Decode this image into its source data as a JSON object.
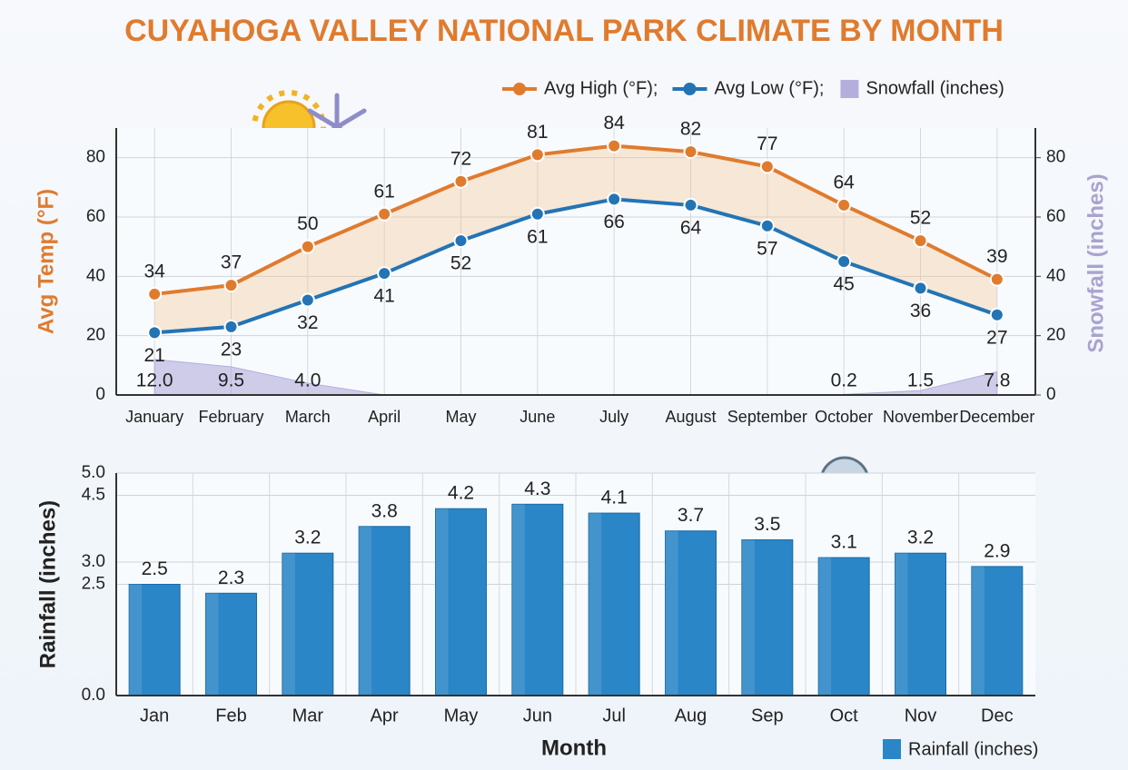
{
  "chart_data": [
    {
      "type": "line",
      "title": "CUYAHOGA VALLEY NATIONAL PARK CLIMATE BY MONTH",
      "categories": [
        "January",
        "February",
        "March",
        "April",
        "May",
        "June",
        "July",
        "August",
        "September",
        "October",
        "November",
        "December"
      ],
      "series": [
        {
          "name": "Avg High (°F);",
          "color": "#e07b2e",
          "axis": "y",
          "values": [
            34,
            37,
            50,
            61,
            72,
            81,
            84,
            82,
            77,
            64,
            52,
            39
          ]
        },
        {
          "name": "Avg Low (°F);",
          "color": "#2374b5",
          "axis": "y",
          "values": [
            21,
            23,
            32,
            41,
            52,
            61,
            66,
            64,
            57,
            45,
            36,
            27
          ]
        },
        {
          "name": "Snowfall (inches)",
          "type": "area",
          "color": "#b3aedb",
          "axis": "y2",
          "values": [
            12.0,
            9.5,
            4.0,
            0,
            0,
            0,
            0,
            0,
            0,
            0.2,
            1.5,
            7.8
          ],
          "value_labels": [
            "12.0",
            "9.5",
            "4.0",
            null,
            null,
            null,
            null,
            null,
            null,
            "0.2",
            "1.5",
            "7.8"
          ]
        }
      ],
      "ylabel": "Avg Temp (°F)",
      "ylabel_color": "#e07b2e",
      "y2label": "Snowfall (inches)",
      "y2label_color": "#a9a3cf",
      "ylim": [
        0,
        90
      ],
      "yticks": [
        0,
        20,
        40,
        60,
        80
      ],
      "y2lim": [
        0,
        90
      ],
      "y2ticks": [
        0,
        20,
        40,
        60,
        80
      ],
      "grid": true
    },
    {
      "type": "bar",
      "categories": [
        "Jan",
        "Feb",
        "Mar",
        "Apr",
        "May",
        "Jun",
        "Jul",
        "Aug",
        "Sep",
        "Oct",
        "Nov",
        "Dec"
      ],
      "series": [
        {
          "name": "Rainfall (inches)",
          "color": "#2a86c6",
          "values": [
            2.5,
            2.3,
            3.2,
            3.8,
            4.2,
            4.3,
            4.1,
            3.7,
            3.5,
            3.1,
            3.2,
            2.9
          ]
        }
      ],
      "xlabel": "Month",
      "ylabel": "Rainfall (inches)",
      "ylim": [
        0,
        5
      ],
      "yticks": [
        {
          "value": 0,
          "label": "0.0"
        },
        {
          "value": 2.5,
          "label": "2.5"
        },
        {
          "value": 3,
          "label": "3.0"
        },
        {
          "value": 4.5,
          "label": "4.5"
        },
        {
          "value": 5,
          "label": "5.0"
        }
      ],
      "grid": true
    }
  ]
}
